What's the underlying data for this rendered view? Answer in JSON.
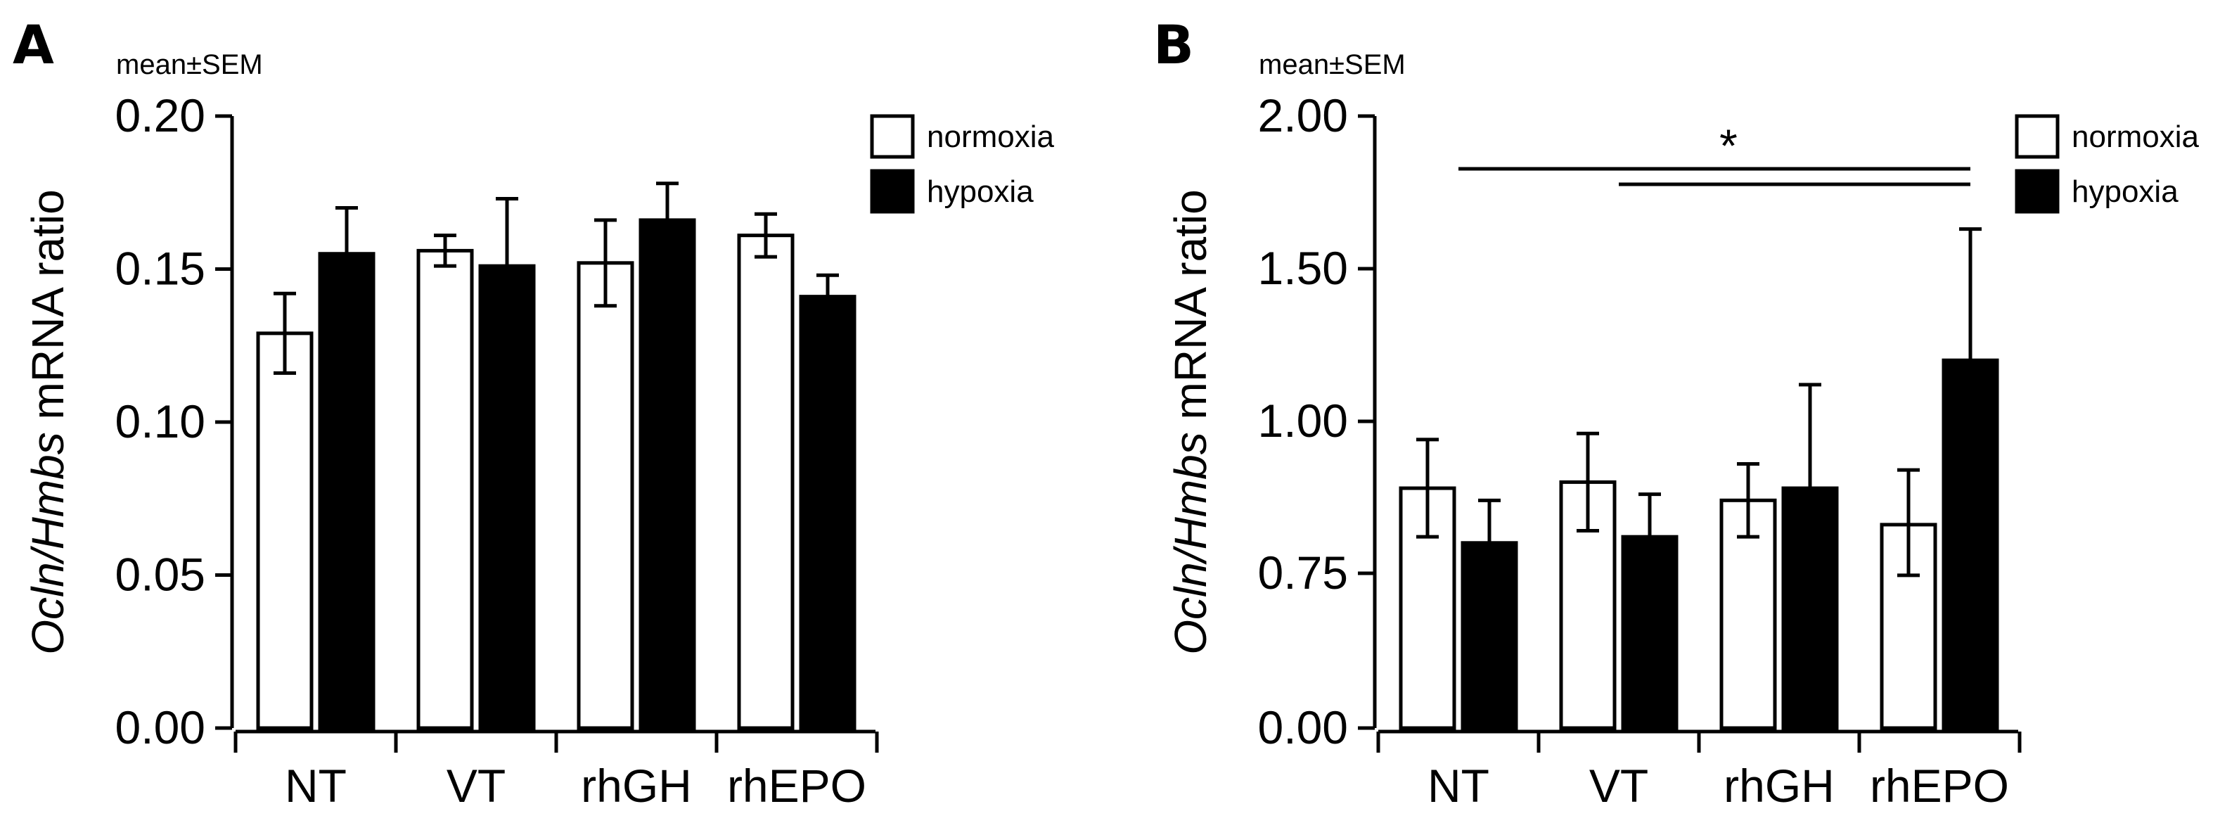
{
  "chart_data": [
    {
      "panel": "A",
      "type": "bar",
      "annotation": "mean±SEM",
      "ylabel_gene": "Ocln",
      "ylabel_ref": "Hmbs",
      "ylabel_tail": "mRNA ratio",
      "yticks": [
        "0.00",
        "0.05",
        "0.10",
        "0.15",
        "0.20"
      ],
      "ylim": [
        0,
        0.2
      ],
      "categories": [
        "NT",
        "VT",
        "rhGH",
        "rhEPO"
      ],
      "series": [
        {
          "name": "normoxia",
          "color": "#ffffff",
          "values": [
            0.129,
            0.156,
            0.152,
            0.161
          ],
          "errors": [
            0.013,
            0.005,
            0.014,
            0.007
          ]
        },
        {
          "name": "hypoxia",
          "color": "#000000",
          "values": [
            0.155,
            0.151,
            0.166,
            0.141
          ],
          "errors": [
            0.015,
            0.022,
            0.012,
            0.007
          ]
        }
      ],
      "significance": []
    },
    {
      "panel": "B",
      "type": "bar",
      "annotation": "mean±SEM",
      "ylabel_gene": "Ocln",
      "ylabel_ref": "Hmbs",
      "ylabel_tail": "mRNA ratio",
      "yticks": [
        "0.00",
        "0.75",
        "1.00",
        "1.50",
        "2.00"
      ],
      "ylim": [
        0,
        2.0
      ],
      "categories": [
        "NT",
        "VT",
        "rhGH",
        "rhEPO"
      ],
      "series": [
        {
          "name": "normoxia",
          "color": "#ffffff",
          "values": [
            0.89,
            0.9,
            0.87,
            0.83
          ],
          "errors": [
            0.08,
            0.08,
            0.06,
            0.09
          ]
        },
        {
          "name": "hypoxia",
          "color": "#000000",
          "values": [
            0.8,
            0.81,
            0.89,
            1.2
          ],
          "errors": [
            0.07,
            0.07,
            0.23,
            0.43
          ]
        }
      ],
      "significance": [
        {
          "label": "*",
          "from": "NT",
          "to": "rhEPO"
        },
        {
          "label": "",
          "from": "VT",
          "to": "rhEPO"
        }
      ]
    }
  ]
}
